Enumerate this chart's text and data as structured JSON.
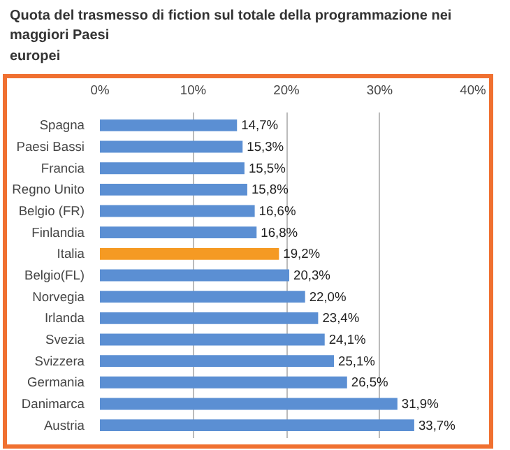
{
  "chart_data": {
    "type": "bar",
    "orientation": "horizontal",
    "title": "Quota del trasmesso di fiction sul totale della programmazione nei maggiori Paesi europei",
    "categories": [
      "Spagna",
      "Paesi Bassi",
      "Francia",
      "Regno Unito",
      "Belgio (FR)",
      "Finlandia",
      "Italia",
      "Belgio(FL)",
      "Norvegia",
      "Irlanda",
      "Svezia",
      "Svizzera",
      "Germania",
      "Danimarca",
      "Austria"
    ],
    "values": [
      14.7,
      15.3,
      15.5,
      15.8,
      16.6,
      16.8,
      19.2,
      20.3,
      22.0,
      23.4,
      24.1,
      25.1,
      26.5,
      31.9,
      33.7
    ],
    "colors": [
      "#5b8fd3",
      "#5b8fd3",
      "#5b8fd3",
      "#5b8fd3",
      "#5b8fd3",
      "#5b8fd3",
      "#f59a23",
      "#5b8fd3",
      "#5b8fd3",
      "#5b8fd3",
      "#5b8fd3",
      "#5b8fd3",
      "#5b8fd3",
      "#5b8fd3",
      "#5b8fd3"
    ],
    "value_labels": [
      "14,7%",
      "15,3%",
      "15,5%",
      "15,8%",
      "16,6%",
      "16,8%",
      "19,2%",
      "20,3%",
      "22,0%",
      "23,4%",
      "24,1%",
      "25,1%",
      "26,5%",
      "31,9%",
      "33,7%"
    ],
    "xlim": [
      0,
      40
    ],
    "xticks": [
      {
        "value": 0,
        "label": "0%"
      },
      {
        "value": 10,
        "label": "10%"
      },
      {
        "value": 20,
        "label": "20%"
      },
      {
        "value": 30,
        "label": "30%"
      },
      {
        "value": 40,
        "label": "40%"
      }
    ],
    "grid": "x"
  }
}
